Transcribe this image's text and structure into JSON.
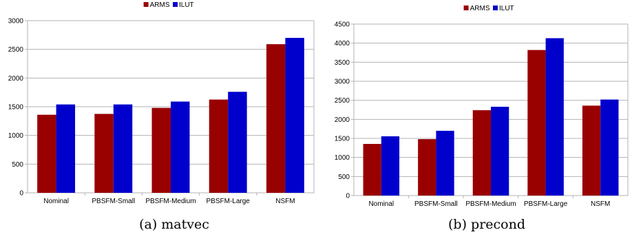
{
  "chart_data": [
    {
      "type": "bar",
      "caption": "(a) matvec",
      "categories": [
        "Nominal",
        "PBSFM-Small",
        "PBSFM-Medium",
        "PBSFM-Large",
        "NSFM"
      ],
      "series": [
        {
          "name": "ARMS",
          "color": "#990000",
          "values": [
            1360,
            1375,
            1480,
            1625,
            2590
          ]
        },
        {
          "name": "ILUT",
          "color": "#0000cc",
          "values": [
            1540,
            1540,
            1590,
            1760,
            2700
          ]
        }
      ],
      "ylim": [
        0,
        3000
      ],
      "yticks": [
        0,
        500,
        1000,
        1500,
        2000,
        2500,
        3000
      ],
      "grid": true,
      "legend": "top"
    },
    {
      "type": "bar",
      "caption": "(b) precond",
      "categories": [
        "Nominal",
        "PBSFM-Small",
        "PBSFM-Medium",
        "PBSFM-Large",
        "NSFM"
      ],
      "series": [
        {
          "name": "ARMS",
          "color": "#990000",
          "values": [
            1355,
            1480,
            2240,
            3820,
            2360
          ]
        },
        {
          "name": "ILUT",
          "color": "#0000cc",
          "values": [
            1555,
            1700,
            2330,
            4130,
            2520
          ]
        }
      ],
      "ylim": [
        0,
        4500
      ],
      "yticks": [
        0,
        500,
        1000,
        1500,
        2000,
        2500,
        3000,
        3500,
        4000,
        4500
      ],
      "grid": true,
      "legend": "top"
    }
  ]
}
